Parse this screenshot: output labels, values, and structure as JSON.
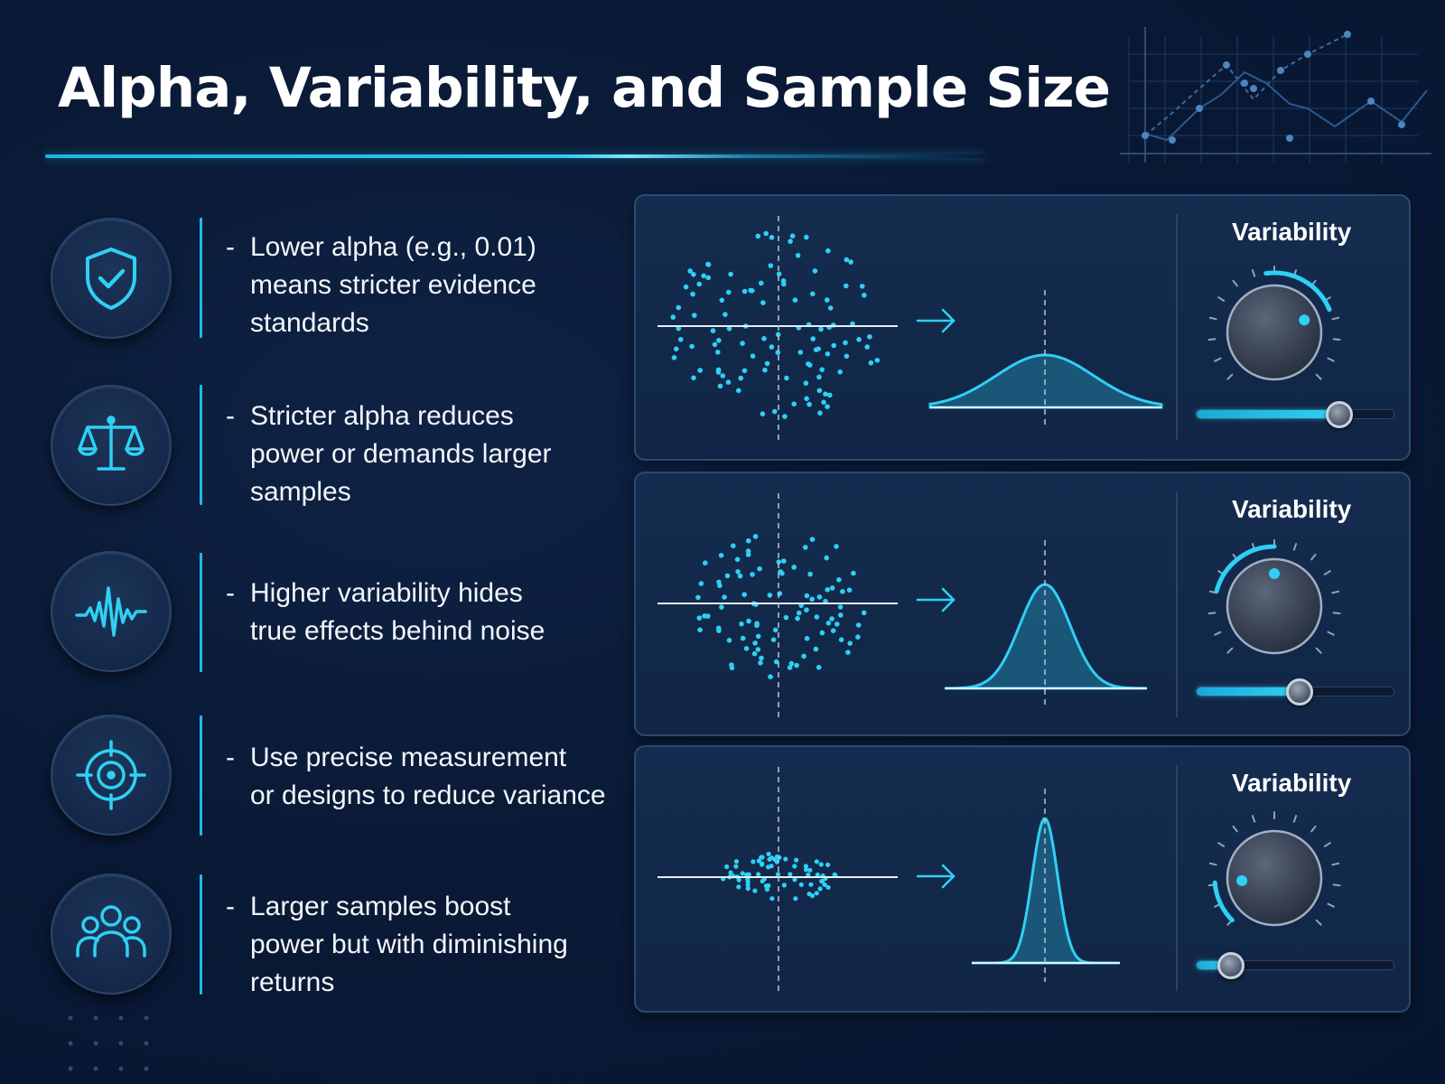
{
  "title": "Alpha, Variability, and Sample Size",
  "colors": {
    "accent": "#2cc8ee",
    "background": "#0a1a36",
    "panel": "#132a4b",
    "text": "#f2f6fb"
  },
  "bullets": [
    {
      "icon": "shield-check-icon",
      "dash": "-",
      "text": "Lower alpha (e.g., 0.01)\nmeans stricter evidence\nstandards"
    },
    {
      "icon": "balance-scale-icon",
      "dash": "-",
      "text": "Stricter alpha reduces\npower or demands larger\nsamples"
    },
    {
      "icon": "pulse-wave-icon",
      "dash": "-",
      "text": "Higher variability hides\ntrue effects behind noise"
    },
    {
      "icon": "crosshair-target-icon",
      "dash": "-",
      "text": "Use precise measurement\nor designs to reduce variance"
    },
    {
      "icon": "people-group-icon",
      "dash": "-",
      "text": "Larger samples boost\npower but with diminishing\nreturns"
    }
  ],
  "panels": [
    {
      "label": "Variability",
      "spread": "high",
      "variability_level": 0.75,
      "slider_value": 0.72
    },
    {
      "label": "Variability",
      "spread": "medium",
      "variability_level": 0.5,
      "slider_value": 0.52
    },
    {
      "label": "Variability",
      "spread": "low",
      "variability_level": 0.15,
      "slider_value": 0.17
    }
  ]
}
